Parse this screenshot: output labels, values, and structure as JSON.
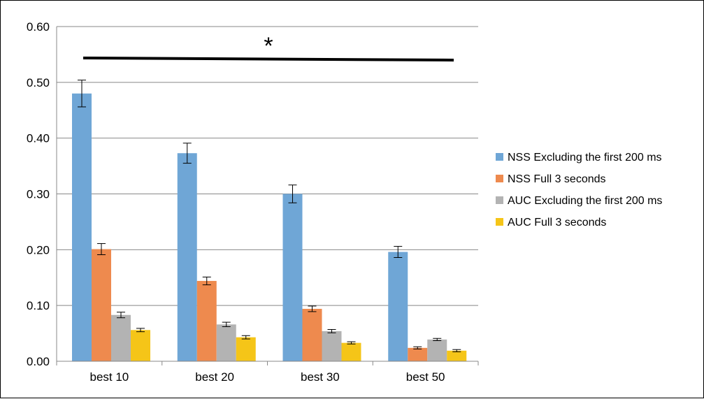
{
  "chart_data": {
    "type": "bar",
    "title": "",
    "xlabel": "",
    "ylabel": "",
    "ylim": [
      0,
      0.6
    ],
    "yticks": [
      "0.00",
      "0.10",
      "0.20",
      "0.30",
      "0.40",
      "0.50",
      "0.60"
    ],
    "grid": true,
    "legend_position": "right",
    "categories": [
      "best 10",
      "best 20",
      "best 30",
      "best 50"
    ],
    "series": [
      {
        "name": "NSS Excluding the first 200 ms",
        "color": "#6fa6d6",
        "values": [
          0.48,
          0.373,
          0.3,
          0.196
        ],
        "errors": [
          0.024,
          0.018,
          0.016,
          0.01
        ]
      },
      {
        "name": "NSS Full 3 seconds",
        "color": "#ee8a4e",
        "values": [
          0.201,
          0.144,
          0.094,
          0.024
        ],
        "errors": [
          0.01,
          0.007,
          0.005,
          0.002
        ]
      },
      {
        "name": "AUC Excluding the first 200 ms",
        "color": "#b3b3b3",
        "values": [
          0.083,
          0.066,
          0.054,
          0.039
        ],
        "errors": [
          0.005,
          0.004,
          0.003,
          0.002
        ]
      },
      {
        "name": "AUC Full 3 seconds",
        "color": "#f5c518",
        "values": [
          0.056,
          0.043,
          0.033,
          0.019
        ],
        "errors": [
          0.003,
          0.003,
          0.002,
          0.002
        ]
      }
    ],
    "annotation": "*"
  }
}
